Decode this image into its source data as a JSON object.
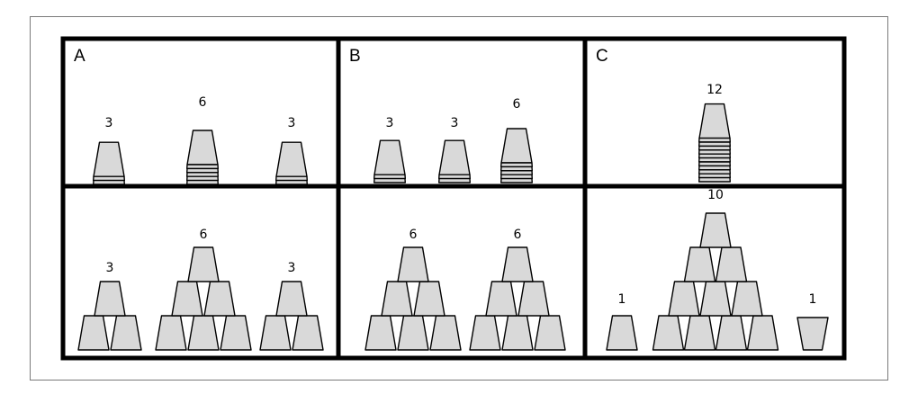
{
  "panels": [
    {
      "letter": "A",
      "stacks": [
        "3",
        "6",
        "3"
      ],
      "pyramids": [
        "3",
        "6",
        "3"
      ]
    },
    {
      "letter": "B",
      "stacks": [
        "3",
        "3",
        "6"
      ],
      "pyramids": [
        "6",
        "6"
      ]
    },
    {
      "letter": "C",
      "stacks": [
        "12"
      ],
      "pyramids": [
        "1",
        "10",
        "1"
      ]
    }
  ],
  "colors": {
    "cup_fill": "#d9d9d9",
    "outline": "#000000"
  }
}
